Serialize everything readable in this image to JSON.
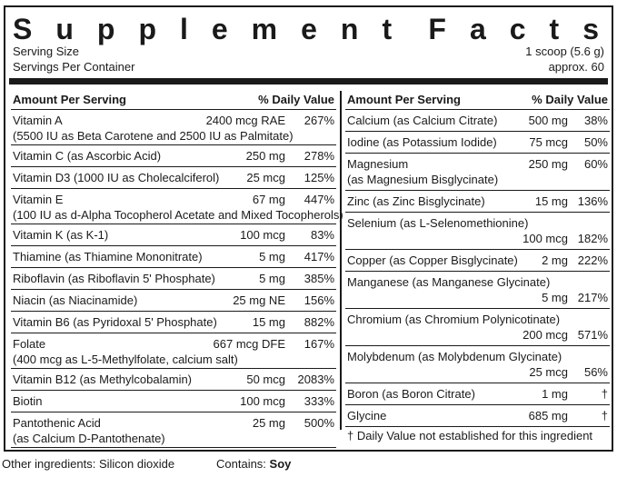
{
  "title": {
    "word1": "Supplement",
    "word2": "Facts"
  },
  "serving": {
    "size_label": "Serving Size",
    "size_value": "1 scoop (5.6 g)",
    "per_container_label": "Servings Per Container",
    "per_container_value": "approx. 60"
  },
  "left_header": {
    "amount": "Amount Per Serving",
    "dv": "% Daily Value"
  },
  "left_rows": [
    {
      "name": "Vitamin A",
      "amount": "2400 mcg RAE",
      "dv": "267%",
      "sub": "(5500 IU as Beta Carotene and 2500 IU as Palmitate)"
    },
    {
      "name": "Vitamin C (as Ascorbic Acid)",
      "amount": "250 mg",
      "dv": "278%"
    },
    {
      "name": "Vitamin D3 (1000 IU as Cholecalciferol)",
      "amount": "25 mcg",
      "dv": "125%"
    },
    {
      "name": "Vitamin E",
      "amount": "67 mg",
      "dv": "447%",
      "sub": "(100 IU as d-Alpha Tocopherol Acetate and Mixed Tocopherols)"
    },
    {
      "name": "Vitamin K (as K-1)",
      "amount": "100 mcg",
      "dv": "83%"
    },
    {
      "name": "Thiamine (as Thiamine Mononitrate)",
      "amount": "5 mg",
      "dv": "417%"
    },
    {
      "name": "Riboflavin (as Riboflavin 5' Phosphate)",
      "amount": "5 mg",
      "dv": "385%"
    },
    {
      "name": "Niacin (as Niacinamide)",
      "amount": "25 mg NE",
      "dv": "156%"
    },
    {
      "name": "Vitamin B6 (as Pyridoxal 5' Phosphate)",
      "amount": "15 mg",
      "dv": "882%"
    },
    {
      "name": "Folate",
      "amount": "667 mcg DFE",
      "dv": "167%",
      "sub": "(400 mcg as L-5-Methylfolate, calcium salt)"
    },
    {
      "name": "Vitamin B12 (as Methylcobalamin)",
      "amount": "50 mcg",
      "dv": "2083%"
    },
    {
      "name": "Biotin",
      "amount": "100 mcg",
      "dv": "333%"
    },
    {
      "name": "Pantothenic Acid",
      "amount": "25 mg",
      "dv": "500%",
      "sub": "(as Calcium D-Pantothenate)"
    }
  ],
  "right_header": {
    "amount": "Amount Per Serving",
    "dv": "% Daily Value"
  },
  "right_rows": [
    {
      "name": "Calcium (as Calcium Citrate)",
      "amount": "500 mg",
      "dv": "38%"
    },
    {
      "name": "Iodine (as Potassium Iodide)",
      "amount": "75 mcg",
      "dv": "50%"
    },
    {
      "name": "Magnesium",
      "amount": "250 mg",
      "dv": "60%",
      "sub": "(as Magnesium Bisglycinate)"
    },
    {
      "name": "Zinc (as Zinc Bisglycinate)",
      "amount": "15 mg",
      "dv": "136%"
    },
    {
      "name": "Selenium (as L-Selenomethionine)",
      "amount": "100 mcg",
      "dv": "182%",
      "split": true
    },
    {
      "name": "Copper (as Copper Bisglycinate)",
      "amount": "2 mg",
      "dv": "222%"
    },
    {
      "name": "Manganese (as Manganese Glycinate)",
      "amount": "5 mg",
      "dv": "217%",
      "split": true
    },
    {
      "name": "Chromium (as Chromium Polynicotinate)",
      "amount": "200 mcg",
      "dv": "571%",
      "split": true
    },
    {
      "name": "Molybdenum (as Molybdenum Glycinate)",
      "amount": "25 mcg",
      "dv": "56%",
      "split": true
    },
    {
      "name": "Boron (as Boron Citrate)",
      "amount": "1 mg",
      "dv": "†"
    },
    {
      "name": "Glycine",
      "amount": "685 mg",
      "dv": "†"
    }
  ],
  "dv_note": "† Daily Value not established for this ingredient",
  "footer": {
    "other_ingredients": "Other ingredients: Silicon dioxide",
    "contains_label": "Contains: ",
    "contains_value": "Soy"
  }
}
